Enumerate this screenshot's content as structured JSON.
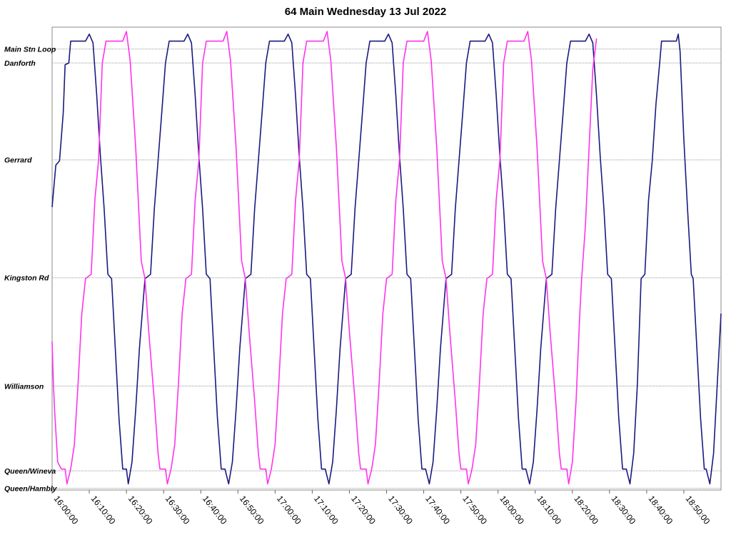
{
  "chart_data": {
    "type": "line",
    "title": "64 Main Wednesday 13 Jul 2022",
    "xlim": [
      "16:00:00",
      "19:00:00"
    ],
    "xticks": [
      "16:00:00",
      "16:10:00",
      "16:20:00",
      "16:30:00",
      "16:40:00",
      "16:50:00",
      "17:00:00",
      "17:10:00",
      "17:20:00",
      "17:30:00",
      "17:40:00",
      "17:50:00",
      "18:00:00",
      "18:10:00",
      "18:20:00",
      "18:30:00",
      "18:40:00",
      "18:50:00"
    ],
    "ylim": [
      -0.02,
      5.28
    ],
    "yticks": [
      {
        "value": 0,
        "label": "Queen/Hambly"
      },
      {
        "value": 0.2,
        "label": "Queen/Wineva"
      },
      {
        "value": 1.17,
        "label": "Williamson"
      },
      {
        "value": 2.41,
        "label": "Kingston Rd"
      },
      {
        "value": 3.76,
        "label": "Gerrard"
      },
      {
        "value": 4.87,
        "label": "Danforth"
      },
      {
        "value": 5.03,
        "label": "Main Stn Loop"
      }
    ],
    "grid": true,
    "series": [
      {
        "color": "#1a1a80",
        "x": [
          "16:00:00",
          "16:01:00",
          "16:02:00",
          "16:03:00",
          "16:03:30",
          "16:04:30",
          "16:05:00",
          "16:09:00",
          "16:10:00",
          "16:11:00",
          "16:12:00",
          "16:13:00",
          "16:14:00",
          "16:15:00",
          "16:16:00",
          "16:17:00",
          "16:18:00",
          "16:19:00",
          "16:20:00",
          "16:20:30",
          "16:21:30",
          "16:22:30",
          "16:23:30",
          "16:25:00",
          "16:26:30",
          "16:27:30",
          "16:28:30",
          "16:29:30",
          "16:30:30",
          "16:31:30",
          "16:35:30",
          "16:36:30",
          "16:37:30",
          "16:38:30",
          "16:39:30",
          "16:40:30",
          "16:41:30",
          "16:42:30",
          "16:43:30",
          "16:44:30",
          "16:45:30",
          "16:46:30",
          "16:47:30",
          "16:48:30",
          "16:49:30",
          "16:50:30",
          "16:52:00",
          "16:53:30",
          "16:54:30",
          "16:55:30",
          "16:56:30",
          "16:57:30",
          "16:58:30",
          "17:02:30",
          "17:03:30",
          "17:04:30",
          "17:05:30",
          "17:06:30",
          "17:07:30",
          "17:08:30",
          "17:09:30",
          "17:10:30",
          "17:11:30",
          "17:12:30",
          "17:13:30",
          "17:14:30",
          "17:15:30",
          "17:16:30",
          "17:17:30",
          "17:19:00",
          "17:20:30",
          "17:21:30",
          "17:22:30",
          "17:23:30",
          "17:24:30",
          "17:25:30",
          "17:29:30",
          "17:30:30",
          "17:31:30",
          "17:32:30",
          "17:33:30",
          "17:34:30",
          "17:35:30",
          "17:36:30",
          "17:37:30",
          "17:38:30",
          "17:39:30",
          "17:40:30",
          "17:41:30",
          "17:42:30",
          "17:43:30",
          "17:44:30",
          "17:46:00",
          "17:47:30",
          "17:48:30",
          "17:49:30",
          "17:50:30",
          "17:51:30",
          "17:52:30",
          "17:56:30",
          "17:57:30",
          "17:58:30",
          "17:59:30",
          "18:00:30",
          "18:01:30",
          "18:02:30",
          "18:03:30",
          "18:04:30",
          "18:05:30",
          "18:06:30",
          "18:07:30",
          "18:08:30",
          "18:09:30",
          "18:10:30",
          "18:11:30",
          "18:13:00",
          "18:14:30",
          "18:15:30",
          "18:16:30",
          "18:17:30",
          "18:18:30",
          "18:19:30",
          "18:23:30",
          "18:24:30",
          "18:25:30",
          "18:26:30",
          "18:27:30",
          "18:28:30",
          "18:29:30",
          "18:30:30",
          "18:31:30",
          "18:32:30",
          "18:33:30",
          "18:34:30",
          "18:35:30",
          "18:36:30",
          "18:37:30",
          "18:38:30",
          "18:39:30",
          "18:40:30",
          "18:41:30",
          "18:42:30",
          "18:43:30",
          "18:44:00",
          "18:48:00",
          "18:48:30",
          "18:49:00",
          "18:50:00",
          "18:51:00",
          "18:52:00",
          "18:52:30",
          "18:53:30",
          "18:54:30",
          "18:55:30",
          "18:56:00",
          "18:57:00",
          "18:58:00",
          "18:59:00",
          "19:00:00"
        ],
        "values": [
          3.22,
          3.7,
          3.75,
          4.3,
          4.85,
          4.87,
          5.12,
          5.12,
          5.2,
          5.1,
          4.5,
          3.8,
          3.2,
          2.45,
          2.4,
          1.6,
          0.8,
          0.22,
          0.22,
          0.05,
          0.3,
          0.9,
          1.6,
          2.4,
          2.45,
          3.2,
          3.75,
          4.3,
          4.87,
          5.12,
          5.12,
          5.2,
          5.1,
          4.5,
          3.8,
          3.2,
          2.45,
          2.4,
          1.6,
          0.8,
          0.22,
          0.22,
          0.05,
          0.3,
          0.9,
          1.6,
          2.4,
          2.45,
          3.2,
          3.75,
          4.3,
          4.87,
          5.12,
          5.12,
          5.2,
          5.1,
          4.5,
          3.8,
          3.2,
          2.45,
          2.4,
          1.6,
          0.8,
          0.22,
          0.22,
          0.05,
          0.3,
          0.9,
          1.6,
          2.4,
          2.45,
          3.2,
          3.75,
          4.3,
          4.87,
          5.12,
          5.12,
          5.2,
          5.1,
          4.5,
          3.8,
          3.2,
          2.45,
          2.4,
          1.6,
          0.8,
          0.22,
          0.22,
          0.05,
          0.3,
          0.9,
          1.6,
          2.4,
          2.45,
          3.2,
          3.75,
          4.3,
          4.87,
          5.12,
          5.12,
          5.2,
          5.1,
          4.5,
          3.8,
          3.2,
          2.45,
          2.4,
          1.6,
          0.8,
          0.22,
          0.22,
          0.05,
          0.3,
          0.9,
          1.6,
          2.4,
          2.45,
          3.2,
          3.75,
          4.3,
          4.87,
          5.12,
          5.12,
          5.2,
          5.1,
          4.5,
          3.8,
          3.2,
          2.45,
          2.4,
          1.6,
          0.8,
          0.22,
          0.22,
          0.05,
          0.4,
          1.2,
          2.4,
          2.45,
          3.3,
          3.75,
          4.4,
          4.87,
          5.12,
          5.12,
          5.2,
          5.0,
          4.0,
          3.2,
          2.45,
          2.4,
          1.6,
          0.8,
          0.22,
          0.22,
          0.05,
          0.4,
          1.2,
          2.0
        ]
      },
      {
        "color": "#ff33ee",
        "x": [
          "16:00:00",
          "16:00:20",
          "16:00:40",
          "16:01:30",
          "16:02:30",
          "16:03:30",
          "16:04:00",
          "16:05:00",
          "16:06:00",
          "16:07:00",
          "16:08:00",
          "16:09:00",
          "16:10:30",
          "16:11:30",
          "16:12:30",
          "16:13:30",
          "16:14:30",
          "16:19:00",
          "16:20:00",
          "16:21:00",
          "16:22:30",
          "16:24:00",
          "16:25:00",
          "16:26:00",
          "16:27:30",
          "16:28:30",
          "16:29:00",
          "16:30:30",
          "16:31:00",
          "16:32:00",
          "16:33:00",
          "16:34:00",
          "16:35:00",
          "16:36:00",
          "16:37:30",
          "16:38:30",
          "16:39:30",
          "16:40:30",
          "16:41:30",
          "16:46:00",
          "16:47:00",
          "16:48:00",
          "16:49:30",
          "16:51:00",
          "16:52:00",
          "16:53:00",
          "16:54:30",
          "16:55:30",
          "16:56:00",
          "16:57:30",
          "16:58:00",
          "16:59:00",
          "17:00:00",
          "17:01:00",
          "17:02:00",
          "17:03:00",
          "17:04:30",
          "17:05:30",
          "17:06:30",
          "17:07:30",
          "17:08:30",
          "17:13:00",
          "17:14:00",
          "17:15:00",
          "17:16:30",
          "17:18:00",
          "17:19:00",
          "17:20:00",
          "17:21:30",
          "17:22:30",
          "17:23:00",
          "17:24:30",
          "17:25:00",
          "17:26:00",
          "17:27:00",
          "17:28:00",
          "17:29:00",
          "17:30:00",
          "17:31:30",
          "17:32:30",
          "17:33:30",
          "17:34:30",
          "17:35:30",
          "17:40:00",
          "17:41:00",
          "17:42:00",
          "17:43:30",
          "17:45:00",
          "17:46:00",
          "17:47:00",
          "17:48:30",
          "17:49:30",
          "17:50:00",
          "17:51:30",
          "17:52:00",
          "17:53:00",
          "17:54:00",
          "17:55:00",
          "17:56:00",
          "17:57:00",
          "17:58:30",
          "17:59:30",
          "18:00:30",
          "18:01:30",
          "18:02:30",
          "18:07:00",
          "18:08:00",
          "18:09:00",
          "18:10:30",
          "18:12:00",
          "18:13:00",
          "18:14:00",
          "18:15:30",
          "18:16:30",
          "18:17:00",
          "18:18:30",
          "18:19:00",
          "18:20:00",
          "18:21:00",
          "18:22:00",
          "18:22:30",
          "18:23:30",
          "18:24:30",
          "18:25:30",
          "18:26:30"
        ],
        "values": [
          1.68,
          1.22,
          0.89,
          0.3,
          0.22,
          0.22,
          0.05,
          0.22,
          0.5,
          1.2,
          2.0,
          2.4,
          2.45,
          3.3,
          3.76,
          4.87,
          5.12,
          5.12,
          5.23,
          4.9,
          3.9,
          2.6,
          2.4,
          1.8,
          1.0,
          0.4,
          0.22,
          0.22,
          0.05,
          0.22,
          0.5,
          1.2,
          2.0,
          2.4,
          2.45,
          3.3,
          3.76,
          4.87,
          5.12,
          5.12,
          5.23,
          4.9,
          3.9,
          2.6,
          2.4,
          1.8,
          1.0,
          0.4,
          0.22,
          0.22,
          0.05,
          0.22,
          0.5,
          1.2,
          2.0,
          2.4,
          2.45,
          3.3,
          3.76,
          4.87,
          5.12,
          5.12,
          5.23,
          4.9,
          3.9,
          2.6,
          2.4,
          1.8,
          1.0,
          0.4,
          0.22,
          0.22,
          0.05,
          0.22,
          0.5,
          1.2,
          2.0,
          2.4,
          2.45,
          3.3,
          3.76,
          4.87,
          5.12,
          5.12,
          5.23,
          4.9,
          3.9,
          2.6,
          2.4,
          1.8,
          1.0,
          0.4,
          0.22,
          0.22,
          0.05,
          0.22,
          0.5,
          1.2,
          2.0,
          2.4,
          2.45,
          3.3,
          3.76,
          4.87,
          5.12,
          5.12,
          5.23,
          4.9,
          3.9,
          2.6,
          2.4,
          1.8,
          1.0,
          0.4,
          0.22,
          0.22,
          0.05,
          0.3,
          1.0,
          2.0,
          2.4,
          3.0,
          3.9,
          4.8,
          5.15
        ]
      }
    ]
  }
}
